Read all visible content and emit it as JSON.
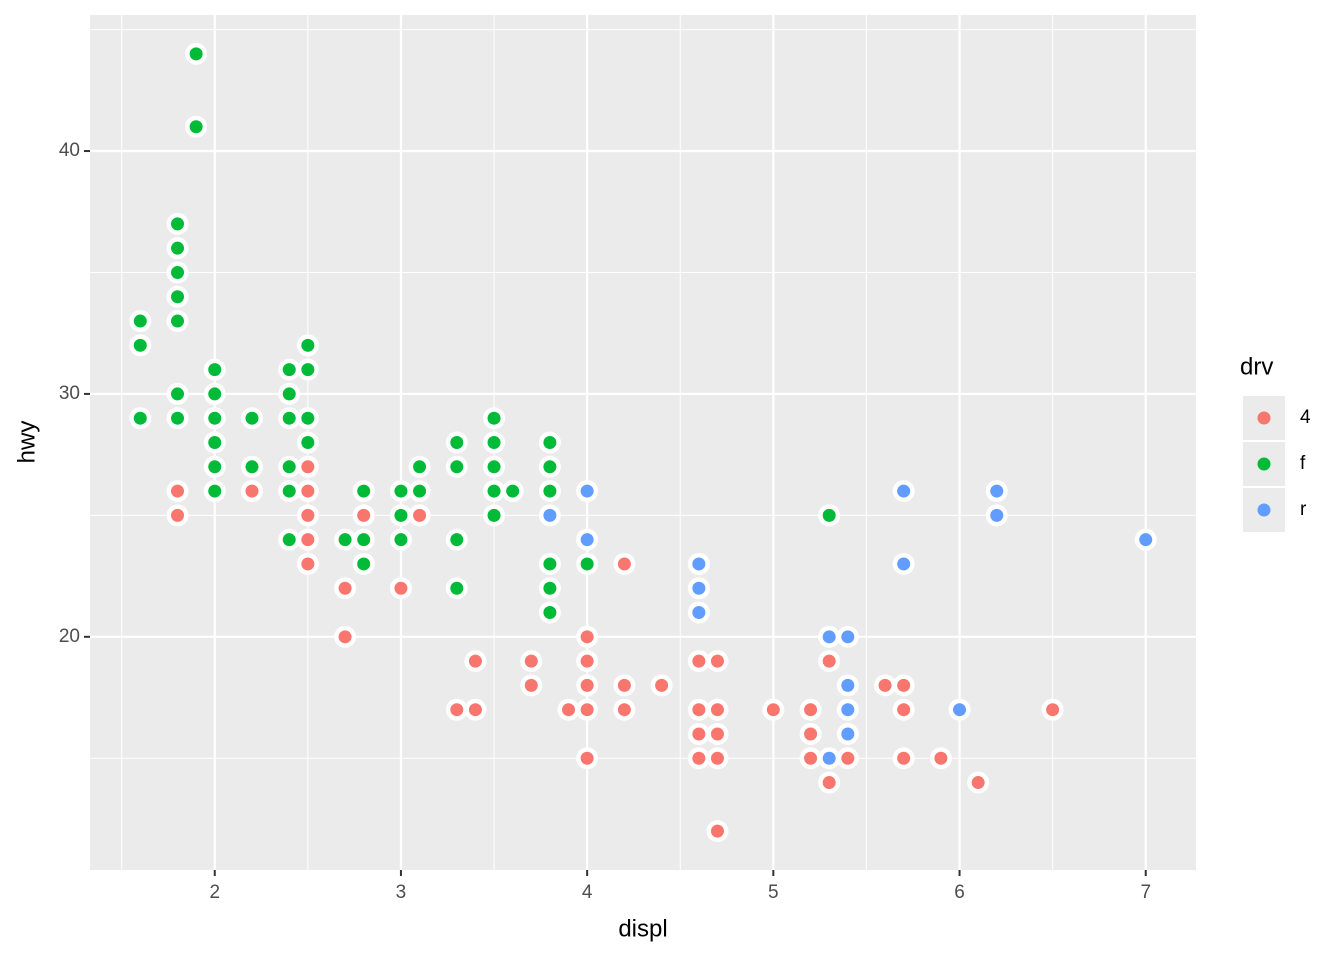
{
  "chart_data": {
    "type": "scatter",
    "x_label": "displ",
    "y_label": "hwy",
    "legend_title": "drv",
    "legend_position": "right",
    "xlim": [
      1.33,
      7.27
    ],
    "ylim": [
      10.4,
      45.6
    ],
    "xticks": [
      2,
      3,
      4,
      5,
      6,
      7
    ],
    "yticks": [
      20,
      30,
      40
    ],
    "x_minor_breaks": [
      1.5,
      2.5,
      3.5,
      4.5,
      5.5,
      6.5
    ],
    "y_minor_breaks": [
      15,
      25,
      35,
      45
    ],
    "grid": true,
    "series": [
      {
        "name": "4",
        "color": "#f8766d",
        "x": [
          1.8,
          1.8,
          2.2,
          2.5,
          2.5,
          2.5,
          2.5,
          2.5,
          2.7,
          2.7,
          2.8,
          3.0,
          3.1,
          3.3,
          3.4,
          3.4,
          3.7,
          3.7,
          3.9,
          4.0,
          4.0,
          4.0,
          4.0,
          4.0,
          4.2,
          4.2,
          4.2,
          4.4,
          4.6,
          4.6,
          4.6,
          4.6,
          4.7,
          4.7,
          4.7,
          4.7,
          4.7,
          5.0,
          5.2,
          5.2,
          5.2,
          5.3,
          5.3,
          5.4,
          5.6,
          5.7,
          5.7,
          5.7,
          5.9,
          6.1,
          6.5
        ],
        "values": [
          26,
          25,
          26,
          27,
          26,
          25,
          24,
          23,
          22,
          20,
          25,
          22,
          25,
          17,
          19,
          17,
          19,
          18,
          17,
          20,
          19,
          18,
          17,
          15,
          23,
          18,
          17,
          18,
          19,
          17,
          16,
          15,
          19,
          17,
          16,
          15,
          12,
          17,
          17,
          16,
          15,
          19,
          14,
          15,
          18,
          18,
          17,
          15,
          15,
          14,
          17
        ]
      },
      {
        "name": "f",
        "color": "#00ba38",
        "x": [
          1.6,
          1.6,
          1.6,
          1.8,
          1.8,
          1.8,
          1.8,
          1.8,
          1.8,
          1.8,
          1.9,
          1.9,
          2.0,
          2.0,
          2.0,
          2.0,
          2.0,
          2.0,
          2.2,
          2.2,
          2.4,
          2.4,
          2.4,
          2.4,
          2.4,
          2.4,
          2.5,
          2.5,
          2.5,
          2.5,
          2.7,
          2.8,
          2.8,
          2.8,
          3.0,
          3.0,
          3.0,
          3.1,
          3.1,
          3.3,
          3.3,
          3.3,
          3.3,
          3.5,
          3.5,
          3.5,
          3.5,
          3.5,
          3.6,
          3.8,
          3.8,
          3.8,
          3.8,
          3.8,
          3.8,
          4.0,
          5.3
        ],
        "values": [
          33,
          32,
          29,
          37,
          36,
          35,
          34,
          33,
          30,
          29,
          44,
          41,
          31,
          30,
          29,
          28,
          27,
          26,
          29,
          27,
          31,
          30,
          29,
          27,
          26,
          24,
          32,
          31,
          29,
          28,
          24,
          26,
          24,
          23,
          26,
          25,
          24,
          27,
          26,
          28,
          27,
          24,
          22,
          29,
          28,
          27,
          26,
          25,
          26,
          28,
          27,
          26,
          23,
          22,
          21,
          23,
          25
        ]
      },
      {
        "name": "r",
        "color": "#619cff",
        "x": [
          3.8,
          4.0,
          4.0,
          4.6,
          4.6,
          4.6,
          5.3,
          5.3,
          5.4,
          5.4,
          5.4,
          5.4,
          5.7,
          5.7,
          6.0,
          6.2,
          6.2,
          7.0
        ],
        "values": [
          25,
          26,
          24,
          23,
          22,
          21,
          20,
          15,
          20,
          18,
          17,
          16,
          26,
          23,
          17,
          26,
          25,
          24
        ]
      }
    ]
  }
}
